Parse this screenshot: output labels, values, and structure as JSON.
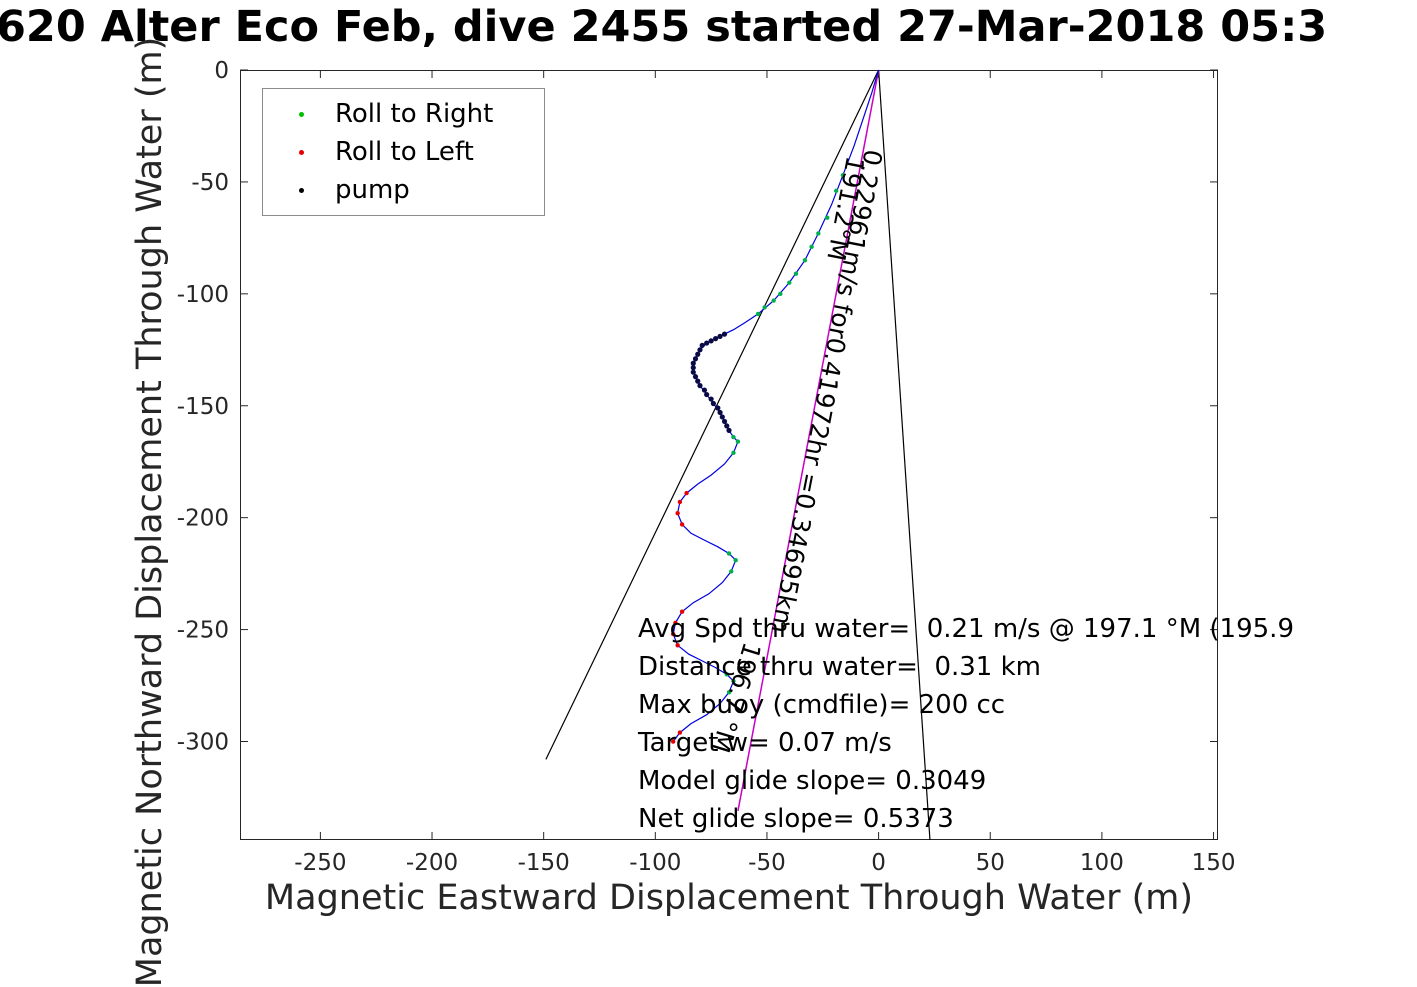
{
  "figure": {
    "title": "620 Alter Eco Feb, dive 2455 started 27-Mar-2018 05:3",
    "x_label": "Magnetic Eastward Displacement Through Water (m)",
    "y_label": "Magnetic Northward Displacement Through Water (m)"
  },
  "legend": {
    "items": [
      {
        "label": "Roll to Right",
        "color": "#00c000"
      },
      {
        "label": "Roll to Left",
        "color": "#e80000"
      },
      {
        "label": "pump",
        "color": "#000000"
      }
    ]
  },
  "annotations": {
    "lines": [
      "Avg Spd thru water=  0.21 m/s @ 197.1 °M (195.9",
      "Distance thru water=  0.31 km",
      "Max buoy (cmdfile)= 200 cc",
      "Target w= 0.07 m/s",
      "Model glide slope= 0.3049",
      "Net glide slope= 0.5373"
    ]
  },
  "chart_data": {
    "type": "scatter",
    "title": "620 Alter Eco Feb, dive 2455 started 27-Mar-2018 05:3",
    "xlabel": "Magnetic Eastward Displacement Through Water (m)",
    "ylabel": "Magnetic Northward Displacement Through Water (m)",
    "xlim": [
      -286,
      152
    ],
    "ylim": [
      -344,
      0
    ],
    "xticks": [
      -250,
      -200,
      -150,
      -100,
      -50,
      0,
      50,
      100,
      150
    ],
    "yticks": [
      0,
      -50,
      -100,
      -150,
      -200,
      -250,
      -300
    ],
    "grid": false,
    "legend_position": "top-left",
    "track": {
      "name": "dive-track",
      "color": "#0000e0",
      "points": [
        [
          0,
          0
        ],
        [
          -3,
          -10
        ],
        [
          -7,
          -22
        ],
        [
          -11,
          -34
        ],
        [
          -16,
          -47
        ],
        [
          -21,
          -60
        ],
        [
          -27,
          -73
        ],
        [
          -33,
          -85
        ],
        [
          -40,
          -95
        ],
        [
          -47,
          -103
        ],
        [
          -54,
          -109
        ],
        [
          -60,
          -113
        ],
        [
          -65,
          -116
        ],
        [
          -69,
          -118
        ],
        [
          -73,
          -120
        ],
        [
          -77,
          -122
        ],
        [
          -80,
          -125
        ],
        [
          -82,
          -129
        ],
        [
          -83,
          -133
        ],
        [
          -82,
          -137
        ],
        [
          -80,
          -141
        ],
        [
          -77,
          -145
        ],
        [
          -74,
          -149
        ],
        [
          -71,
          -153
        ],
        [
          -69,
          -157
        ],
        [
          -67,
          -161
        ],
        [
          -65,
          -164
        ],
        [
          -63,
          -166
        ],
        [
          -65,
          -171
        ],
        [
          -69,
          -176
        ],
        [
          -75,
          -181
        ],
        [
          -81,
          -185
        ],
        [
          -86,
          -189
        ],
        [
          -89,
          -193
        ],
        [
          -90,
          -198
        ],
        [
          -88,
          -203
        ],
        [
          -84,
          -207
        ],
        [
          -78,
          -210
        ],
        [
          -72,
          -213
        ],
        [
          -67,
          -216
        ],
        [
          -64,
          -219
        ],
        [
          -66,
          -224
        ],
        [
          -70,
          -229
        ],
        [
          -76,
          -234
        ],
        [
          -83,
          -238
        ],
        [
          -88,
          -242
        ],
        [
          -91,
          -247
        ],
        [
          -92,
          -252
        ],
        [
          -90,
          -257
        ],
        [
          -85,
          -261
        ],
        [
          -79,
          -264
        ],
        [
          -73,
          -267
        ],
        [
          -68,
          -270
        ],
        [
          -65,
          -273
        ],
        [
          -67,
          -278
        ],
        [
          -71,
          -283
        ],
        [
          -77,
          -288
        ],
        [
          -84,
          -292
        ],
        [
          -89,
          -296
        ],
        [
          -92,
          -300
        ]
      ]
    },
    "reference_lines": [
      {
        "name": "bearing-fan-left",
        "color": "#000000",
        "width": 1.2,
        "points": [
          [
            0,
            0
          ],
          [
            -149,
            -308
          ]
        ]
      },
      {
        "name": "bearing-fan-right",
        "color": "#000000",
        "width": 1.2,
        "points": [
          [
            0,
            0
          ],
          [
            23,
            -344
          ]
        ]
      },
      {
        "name": "desired-track",
        "color": "#c800c8",
        "width": 1.5,
        "points": [
          [
            0,
            0
          ],
          [
            -63,
            -331
          ]
        ]
      }
    ],
    "marker_series": [
      {
        "name": "Roll to Right",
        "color": "#00b050",
        "r": 2.2,
        "points": [
          [
            -16,
            -47
          ],
          [
            -19,
            -54
          ],
          [
            -23,
            -66
          ],
          [
            -27,
            -73
          ],
          [
            -30,
            -79
          ],
          [
            -33,
            -85
          ],
          [
            -37,
            -91
          ],
          [
            -40,
            -95
          ],
          [
            -44,
            -100
          ],
          [
            -47,
            -103
          ],
          [
            -51,
            -106
          ],
          [
            -54,
            -109
          ],
          [
            -67,
            -161
          ],
          [
            -65,
            -164
          ],
          [
            -63,
            -166
          ],
          [
            -65,
            -171
          ],
          [
            -67,
            -216
          ],
          [
            -64,
            -219
          ],
          [
            -66,
            -224
          ],
          [
            -68,
            -270
          ],
          [
            -65,
            -273
          ],
          [
            -67,
            -278
          ]
        ]
      },
      {
        "name": "Roll to Left",
        "color": "#e80000",
        "r": 2.2,
        "points": [
          [
            -86,
            -189
          ],
          [
            -89,
            -193
          ],
          [
            -90,
            -198
          ],
          [
            -88,
            -203
          ],
          [
            -88,
            -242
          ],
          [
            -91,
            -247
          ],
          [
            -92,
            -252
          ],
          [
            -90,
            -257
          ],
          [
            -89,
            -296
          ],
          [
            -92,
            -300
          ]
        ]
      },
      {
        "name": "pump",
        "color": "#0a0a46",
        "r": 2.6,
        "points": [
          [
            -69,
            -118
          ],
          [
            -71,
            -119
          ],
          [
            -73,
            -120
          ],
          [
            -75,
            -121
          ],
          [
            -77,
            -122
          ],
          [
            -79,
            -123
          ],
          [
            -80,
            -125
          ],
          [
            -81,
            -127
          ],
          [
            -82,
            -129
          ],
          [
            -83,
            -131
          ],
          [
            -83,
            -133
          ],
          [
            -83,
            -135
          ],
          [
            -82,
            -137
          ],
          [
            -81,
            -139
          ],
          [
            -80,
            -141
          ],
          [
            -78,
            -143
          ],
          [
            -77,
            -145
          ],
          [
            -75,
            -147
          ],
          [
            -74,
            -149
          ],
          [
            -72,
            -151
          ],
          [
            -71,
            -153
          ],
          [
            -70,
            -155
          ],
          [
            -69,
            -157
          ],
          [
            -68,
            -159
          ],
          [
            -67,
            -161
          ]
        ]
      }
    ],
    "rotated_labels": [
      {
        "text": "191.2°M",
        "x": -14,
        "y": -38,
        "angle": 101,
        "size": 25
      },
      {
        "text": "0.22961m/s for0.41972hr =0.34695km",
        "x": -6,
        "y": -35,
        "angle": 101,
        "size": 25
      },
      {
        "text": "196.7 °M",
        "x": -60,
        "y": -255,
        "angle": 107,
        "size": 25
      }
    ]
  }
}
